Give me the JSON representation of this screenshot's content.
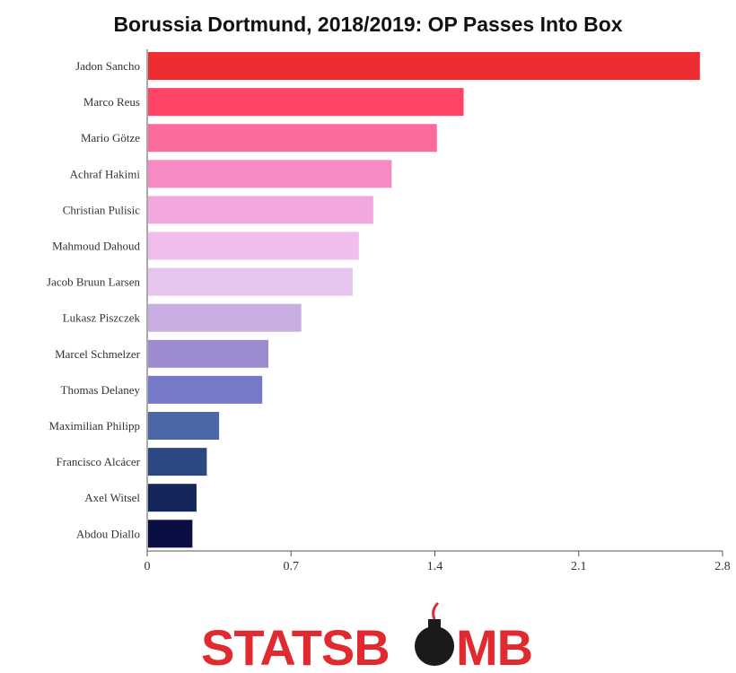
{
  "chart_data": {
    "type": "bar",
    "orientation": "horizontal",
    "title": "Borussia Dortmund, 2018/2019: OP Passes Into Box",
    "xlabel": "",
    "ylabel": "",
    "xlim": [
      0,
      2.8
    ],
    "xticks": [
      "0",
      "0.7",
      "1.4",
      "2.1",
      "2.8"
    ],
    "grid": false,
    "categories": [
      "Jadon Sancho",
      "Marco Reus",
      "Mario Götze",
      "Achraf Hakimi",
      "Christian Pulisic",
      "Mahmoud Dahoud",
      "Jacob Bruun Larsen",
      "Lukasz Piszczek",
      "Marcel Schmelzer",
      "Thomas Delaney",
      "Maximilian Philipp",
      "Francisco Alcácer",
      "Axel Witsel",
      "Abdou Diallo"
    ],
    "values": [
      2.69,
      1.54,
      1.41,
      1.19,
      1.1,
      1.03,
      1.0,
      0.75,
      0.59,
      0.56,
      0.35,
      0.29,
      0.24,
      0.22
    ],
    "colors": [
      "#ee2d33",
      "#ff4466",
      "#fb6b9b",
      "#f68bc3",
      "#f2a8de",
      "#f0bdec",
      "#e6c5ee",
      "#c8aee3",
      "#9d8bd0",
      "#7579c8",
      "#4c67a8",
      "#2c4883",
      "#15275a",
      "#0a0e42"
    ]
  },
  "logo": {
    "text_left": "STATSB",
    "text_right": "MB",
    "text_color": "#e02a2f",
    "bomb_color": "#1a1a1a",
    "fuse_color": "#e02a2f"
  }
}
